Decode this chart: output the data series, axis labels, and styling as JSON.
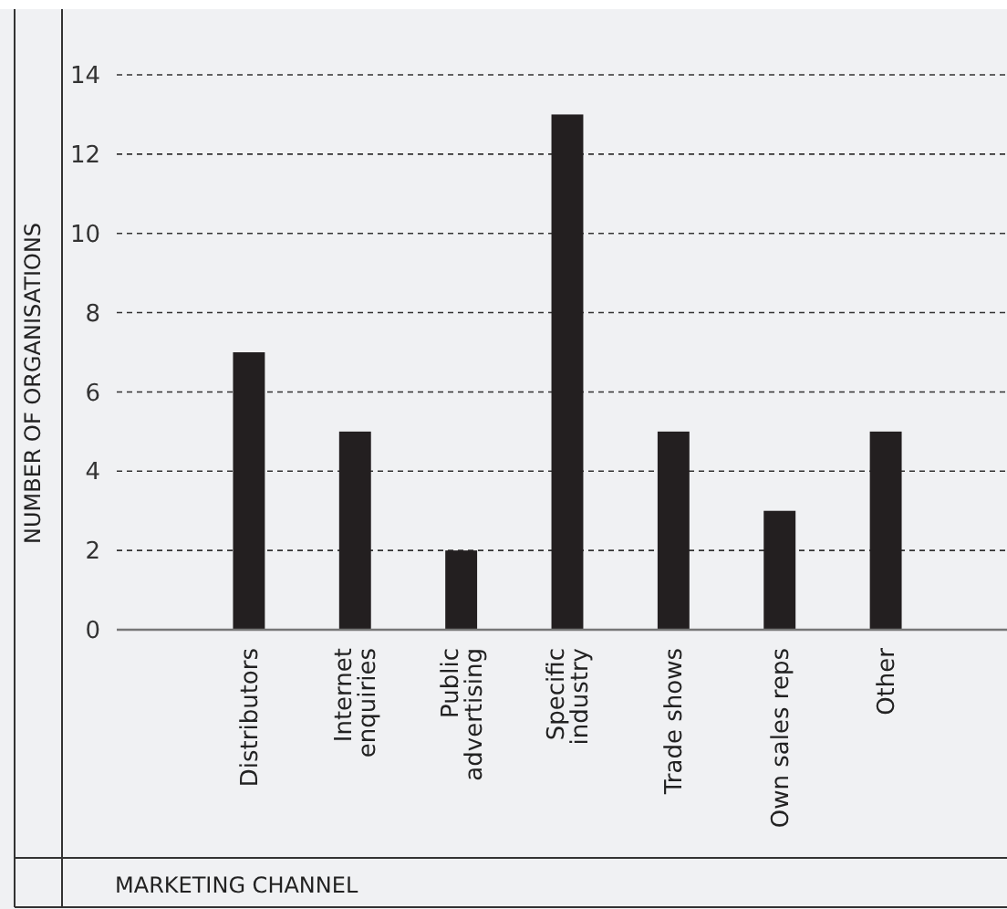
{
  "chart_data": {
    "type": "bar",
    "xlabel": "MARKETING CHANNEL",
    "ylabel": "NUMBER OF ORGANISATIONS",
    "categories": [
      "Distributors",
      "Internet\nenquiries",
      "Public\nadvertising",
      "Specific\nindustry",
      "Trade shows",
      "Own sales reps",
      "Other"
    ],
    "values": [
      7,
      5,
      2,
      13,
      5,
      3,
      5
    ],
    "color": "#231f20",
    "ylim": [
      0,
      14
    ],
    "yticks": [
      0,
      2,
      4,
      6,
      8,
      10,
      12,
      14
    ],
    "grid": "y"
  }
}
